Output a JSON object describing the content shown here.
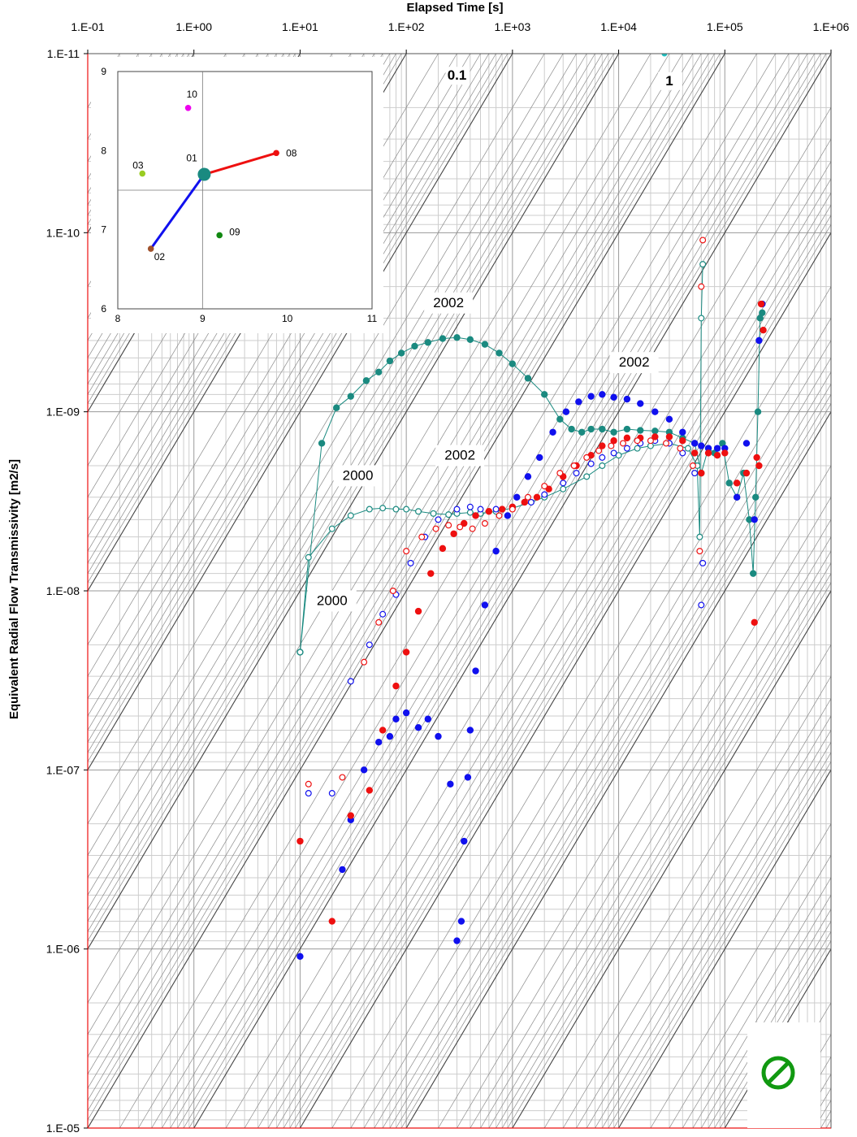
{
  "chart_data": {
    "type": "scatter",
    "title": "",
    "xlabel": "Elapsed Time [s]",
    "ylabel": "Equivalent Radial Flow Transmissivity [m2/s]",
    "x_scale": "log",
    "y_scale": "log",
    "y_inverted": true,
    "xlim": [
      0.1,
      1000000
    ],
    "ylim": [
      1e-05,
      1e-11
    ],
    "x_ticks": [
      {
        "v": 0.1,
        "label": "1.E-01"
      },
      {
        "v": 1,
        "label": "1.E+00"
      },
      {
        "v": 10,
        "label": "1.E+01"
      },
      {
        "v": 100,
        "label": "1.E+02"
      },
      {
        "v": 1000,
        "label": "1.E+03"
      },
      {
        "v": 10000,
        "label": "1.E+04"
      },
      {
        "v": 100000,
        "label": "1.E+05"
      },
      {
        "v": 1000000,
        "label": "1.E+06"
      }
    ],
    "y_ticks": [
      {
        "v": 1e-11,
        "label": "1.E-11"
      },
      {
        "v": 1e-10,
        "label": "1.E-10"
      },
      {
        "v": 1e-09,
        "label": "1.E-09"
      },
      {
        "v": 1e-08,
        "label": "1.E-08"
      },
      {
        "v": 1e-07,
        "label": "1.E-07"
      },
      {
        "v": 1e-06,
        "label": "1.E-06"
      },
      {
        "v": 1e-05,
        "label": "1.E-05"
      }
    ],
    "diagonal_labels": [
      {
        "text": "0.1",
        "x": 300,
        "y": 1.4e-11
      },
      {
        "text": "1",
        "x": 30000,
        "y": 1.5e-11
      }
    ],
    "annotations": [
      {
        "text": "2002",
        "x": 250,
        "y": 2.6e-10
      },
      {
        "text": "2002",
        "x": 14000,
        "y": 5.6e-10
      },
      {
        "text": "2002",
        "x": 320,
        "y": 1.85e-09
      },
      {
        "text": "2000",
        "x": 35,
        "y": 2.4e-09
      },
      {
        "text": "2000",
        "x": 20,
        "y": 1.2e-08
      }
    ],
    "series": [
      {
        "name": "teal-filled-2002",
        "color": "#1a8a80",
        "filled": true,
        "line": true,
        "x": [
          10,
          16,
          22,
          30,
          42,
          55,
          70,
          90,
          120,
          160,
          220,
          300,
          400,
          550,
          750,
          1000,
          1400,
          2000,
          2800,
          3600,
          4500,
          5500,
          7000,
          9000,
          12000,
          16000,
          22000,
          30000,
          40000,
          52000,
          60000,
          70000,
          80000,
          95000,
          110000,
          130000,
          150000,
          170000,
          185000,
          195000,
          205000,
          215000,
          225000
        ],
        "y": [
          2.2e-08,
          1.5e-09,
          9.5e-10,
          8.2e-10,
          6.7e-10,
          6e-10,
          5.2e-10,
          4.7e-10,
          4.3e-10,
          4.1e-10,
          3.9e-10,
          3.85e-10,
          3.95e-10,
          4.2e-10,
          4.7e-10,
          5.4e-10,
          6.5e-10,
          8e-10,
          1.1e-09,
          1.25e-09,
          1.3e-09,
          1.25e-09,
          1.25e-09,
          1.3e-09,
          1.25e-09,
          1.27e-09,
          1.28e-09,
          1.3e-09,
          1.4e-09,
          1.5e-09,
          2.2e-09,
          1.6e-09,
          1.7e-09,
          1.5e-09,
          2.5e-09,
          3e-09,
          2.2e-09,
          4e-09,
          8e-09,
          3e-09,
          1e-09,
          3e-10,
          2.8e-10
        ]
      },
      {
        "name": "teal-open-2000",
        "color": "#1a8a80",
        "filled": false,
        "line": true,
        "x": [
          10,
          12,
          20,
          30,
          45,
          60,
          80,
          100,
          130,
          180,
          250,
          300,
          400,
          500,
          700,
          1000,
          1500,
          2000,
          3000,
          5000,
          7000,
          10000,
          15000,
          20000,
          30000,
          45000,
          55000,
          58000,
          60000,
          62000
        ],
        "y": [
          2.2e-08,
          6.5e-09,
          4.5e-09,
          3.8e-09,
          3.5e-09,
          3.45e-09,
          3.5e-09,
          3.5e-09,
          3.6e-09,
          3.7e-09,
          3.75e-09,
          3.7e-09,
          3.65e-09,
          3.7e-09,
          3.6e-09,
          3.45e-09,
          3.2e-09,
          3e-09,
          2.7e-09,
          2.3e-09,
          2e-09,
          1.75e-09,
          1.6e-09,
          1.55e-09,
          1.5e-09,
          1.6e-09,
          2e-09,
          5e-09,
          3e-10,
          1.5e-10
        ]
      },
      {
        "name": "blue-filled-2002",
        "color": "#1010ee",
        "filled": true,
        "line": false,
        "x": [
          10,
          25,
          30,
          40,
          55,
          70,
          80,
          100,
          130,
          160,
          200,
          260,
          300,
          330,
          350,
          380,
          400,
          450,
          550,
          700,
          900,
          1100,
          1400,
          1800,
          2400,
          3200,
          4200,
          5500,
          7000,
          9000,
          12000,
          16000,
          22000,
          30000,
          40000,
          52000,
          60000,
          70000,
          85000,
          100000,
          130000,
          160000,
          190000,
          210000,
          225000
        ],
        "y": [
          1.1e-06,
          3.6e-07,
          1.9e-07,
          1e-07,
          7e-08,
          6.5e-08,
          5.2e-08,
          4.8e-08,
          5.8e-08,
          5.2e-08,
          6.5e-08,
          1.2e-07,
          9e-07,
          7e-07,
          2.5e-07,
          1.1e-07,
          6e-08,
          2.8e-08,
          1.2e-08,
          6e-09,
          3.8e-09,
          3e-09,
          2.3e-09,
          1.8e-09,
          1.3e-09,
          1e-09,
          8.8e-10,
          8.2e-10,
          8e-10,
          8.3e-10,
          8.5e-10,
          9e-10,
          1e-09,
          1.1e-09,
          1.3e-09,
          1.5e-09,
          1.55e-09,
          1.6e-09,
          1.6e-09,
          1.6e-09,
          3e-09,
          1.5e-09,
          4e-09,
          4e-10,
          2.5e-10
        ]
      },
      {
        "name": "blue-open-2000",
        "color": "#1010ee",
        "filled": false,
        "line": false,
        "x": [
          12,
          20,
          30,
          45,
          60,
          80,
          110,
          150,
          200,
          300,
          400,
          500,
          700,
          1000,
          1500,
          2000,
          3000,
          4000,
          5500,
          7000,
          9000,
          12000,
          16000,
          22000,
          30000,
          40000,
          52000,
          60000,
          62000
        ],
        "y": [
          1.35e-07,
          1.35e-07,
          3.2e-08,
          2e-08,
          1.35e-08,
          1.05e-08,
          7e-09,
          5e-09,
          4e-09,
          3.5e-09,
          3.4e-09,
          3.5e-09,
          3.5e-09,
          3.4e-09,
          3.2e-09,
          2.9e-09,
          2.5e-09,
          2.2e-09,
          1.95e-09,
          1.8e-09,
          1.7e-09,
          1.6e-09,
          1.5e-09,
          1.45e-09,
          1.5e-09,
          1.7e-09,
          2.2e-09,
          1.2e-08,
          7e-09
        ]
      },
      {
        "name": "red-filled-2002",
        "color": "#ee1010",
        "filled": true,
        "line": false,
        "x": [
          10,
          20,
          30,
          45,
          60,
          80,
          100,
          130,
          170,
          220,
          280,
          350,
          450,
          600,
          800,
          1000,
          1300,
          1700,
          2200,
          3000,
          4000,
          5500,
          7000,
          9000,
          12000,
          16000,
          22000,
          30000,
          40000,
          52000,
          60000,
          70000,
          85000,
          100000,
          130000,
          160000,
          190000,
          200000,
          210000,
          220000,
          230000
        ],
        "y": [
          2.5e-07,
          7e-07,
          1.8e-07,
          1.3e-07,
          6e-08,
          3.4e-08,
          2.2e-08,
          1.3e-08,
          8e-09,
          5.8e-09,
          4.8e-09,
          4.2e-09,
          3.8e-09,
          3.6e-09,
          3.5e-09,
          3.4e-09,
          3.2e-09,
          3e-09,
          2.7e-09,
          2.3e-09,
          2e-09,
          1.75e-09,
          1.55e-09,
          1.45e-09,
          1.4e-09,
          1.4e-09,
          1.38e-09,
          1.38e-09,
          1.45e-09,
          1.7e-09,
          2.2e-09,
          1.7e-09,
          1.75e-09,
          1.7e-09,
          2.5e-09,
          2.2e-09,
          1.5e-08,
          1.8e-09,
          2e-09,
          2.5e-10,
          3.5e-10
        ]
      },
      {
        "name": "red-open-2000",
        "color": "#ee1010",
        "filled": false,
        "line": false,
        "x": [
          12,
          25,
          40,
          55,
          75,
          100,
          140,
          190,
          250,
          320,
          420,
          550,
          750,
          1000,
          1400,
          2000,
          2800,
          3800,
          5000,
          6500,
          8500,
          11000,
          15000,
          20000,
          28000,
          38000,
          50000,
          58000,
          60000,
          62000
        ],
        "y": [
          1.2e-07,
          1.1e-07,
          2.5e-08,
          1.5e-08,
          1e-08,
          6e-09,
          5e-09,
          4.5e-09,
          4.3e-09,
          4.4e-09,
          4.5e-09,
          4.2e-09,
          3.8e-09,
          3.5e-09,
          3e-09,
          2.6e-09,
          2.2e-09,
          2e-09,
          1.8e-09,
          1.65e-09,
          1.55e-09,
          1.5e-09,
          1.45e-09,
          1.45e-09,
          1.5e-09,
          1.6e-09,
          2e-09,
          6e-09,
          2e-10,
          1.1e-10
        ]
      }
    ],
    "top_marker": {
      "x": 27000,
      "y": 1e-11,
      "color": "#20c0c0"
    },
    "inset": {
      "type": "scatter",
      "xlim": [
        8,
        11
      ],
      "ylim": [
        6,
        9
      ],
      "x_ticks": [
        "8",
        "9",
        "10",
        "11"
      ],
      "y_ticks": [
        "6",
        "7",
        "8",
        "9"
      ],
      "points": [
        {
          "label": "10",
          "x": 8.83,
          "y": 8.54,
          "color": "#ee00ee",
          "size": "small"
        },
        {
          "label": "01",
          "x": 9.02,
          "y": 7.7,
          "color": "#1a8a80",
          "size": "large"
        },
        {
          "label": "08",
          "x": 9.87,
          "y": 7.97,
          "color": "#ee1010",
          "size": "small"
        },
        {
          "label": "03",
          "x": 8.29,
          "y": 7.71,
          "color": "#99cc22",
          "size": "small"
        },
        {
          "label": "02",
          "x": 8.39,
          "y": 6.76,
          "color": "#a0522d",
          "size": "small"
        },
        {
          "label": "09",
          "x": 9.2,
          "y": 6.93,
          "color": "#118811",
          "size": "small"
        }
      ],
      "lines": [
        {
          "from": "01",
          "to": "08",
          "color": "#ee1010"
        },
        {
          "from": "01",
          "to": "02",
          "color": "#1010ee"
        }
      ]
    }
  }
}
